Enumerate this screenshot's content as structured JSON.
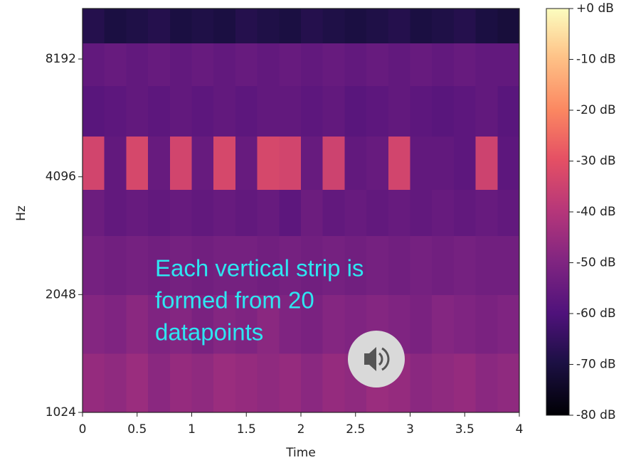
{
  "chart_data": {
    "type": "spectrogram",
    "xlabel": "Time",
    "ylabel": "Hz",
    "xlim": [
      0,
      4
    ],
    "xticks": [
      0,
      0.5,
      1,
      1.5,
      2,
      2.5,
      3,
      3.5,
      4
    ],
    "ylim": [
      1024,
      11025
    ],
    "yticks": [
      1024,
      2048,
      4096,
      8192
    ],
    "yscale": "log2",
    "clim": [
      -80,
      0
    ],
    "cticks": [
      {
        "value": 0,
        "label": "+0 dB"
      },
      {
        "value": -10,
        "label": "-10 dB"
      },
      {
        "value": -20,
        "label": "-20 dB"
      },
      {
        "value": -30,
        "label": "-30 dB"
      },
      {
        "value": -40,
        "label": "-40 dB"
      },
      {
        "value": -50,
        "label": "-50 dB"
      },
      {
        "value": -60,
        "label": "-60 dB"
      },
      {
        "value": -70,
        "label": "-70 dB"
      },
      {
        "value": -80,
        "label": "-80 dB"
      }
    ],
    "colormap": "magma",
    "xbins": [
      0,
      0.2,
      0.4,
      0.6,
      0.8,
      1.0,
      1.2,
      1.4,
      1.6,
      1.8,
      2.0,
      2.2,
      2.4,
      2.6,
      2.8,
      3.0,
      3.2,
      3.4,
      3.6,
      3.8,
      4.0
    ],
    "ybins": [
      1024,
      1448,
      2048,
      2896,
      3800,
      5200,
      7000,
      9000,
      11025
    ],
    "z": [
      [
        -46,
        -47,
        -45,
        -48,
        -46,
        -47,
        -45,
        -46,
        -47,
        -46,
        -48,
        -46,
        -47,
        -45,
        -46,
        -48,
        -47,
        -46,
        -48,
        -47
      ],
      [
        -49,
        -50,
        -48,
        -50,
        -49,
        -51,
        -49,
        -50,
        -48,
        -50,
        -51,
        -49,
        -50,
        -49,
        -50,
        -51,
        -49,
        -50,
        -51,
        -50
      ],
      [
        -52,
        -53,
        -52,
        -53,
        -52,
        -53,
        -52,
        -52,
        -53,
        -52,
        -53,
        -52,
        -53,
        -52,
        -53,
        -52,
        -53,
        -52,
        -53,
        -53
      ],
      [
        -54,
        -56,
        -55,
        -56,
        -55,
        -56,
        -55,
        -56,
        -55,
        -57,
        -54,
        -56,
        -55,
        -56,
        -55,
        -56,
        -55,
        -56,
        -55,
        -56
      ],
      [
        -34,
        -56,
        -33,
        -55,
        -34,
        -55,
        -33,
        -55,
        -33,
        -34,
        -55,
        -35,
        -56,
        -55,
        -34,
        -56,
        -56,
        -57,
        -35,
        -57
      ],
      [
        -58,
        -57,
        -56,
        -57,
        -56,
        -57,
        -56,
        -57,
        -56,
        -56,
        -57,
        -56,
        -58,
        -57,
        -56,
        -57,
        -58,
        -57,
        -56,
        -58
      ],
      [
        -56,
        -55,
        -56,
        -55,
        -56,
        -55,
        -56,
        -55,
        -56,
        -55,
        -56,
        -55,
        -56,
        -55,
        -56,
        -55,
        -56,
        -55,
        -56,
        -56
      ],
      [
        -68,
        -70,
        -69,
        -68,
        -70,
        -69,
        -70,
        -68,
        -69,
        -70,
        -68,
        -69,
        -70,
        -69,
        -68,
        -70,
        -69,
        -68,
        -70,
        -71
      ]
    ],
    "annotation": [
      "Each vertical strip is",
      "formed from 20",
      "datapoints"
    ],
    "annotation_color": "#2ee6f2"
  }
}
